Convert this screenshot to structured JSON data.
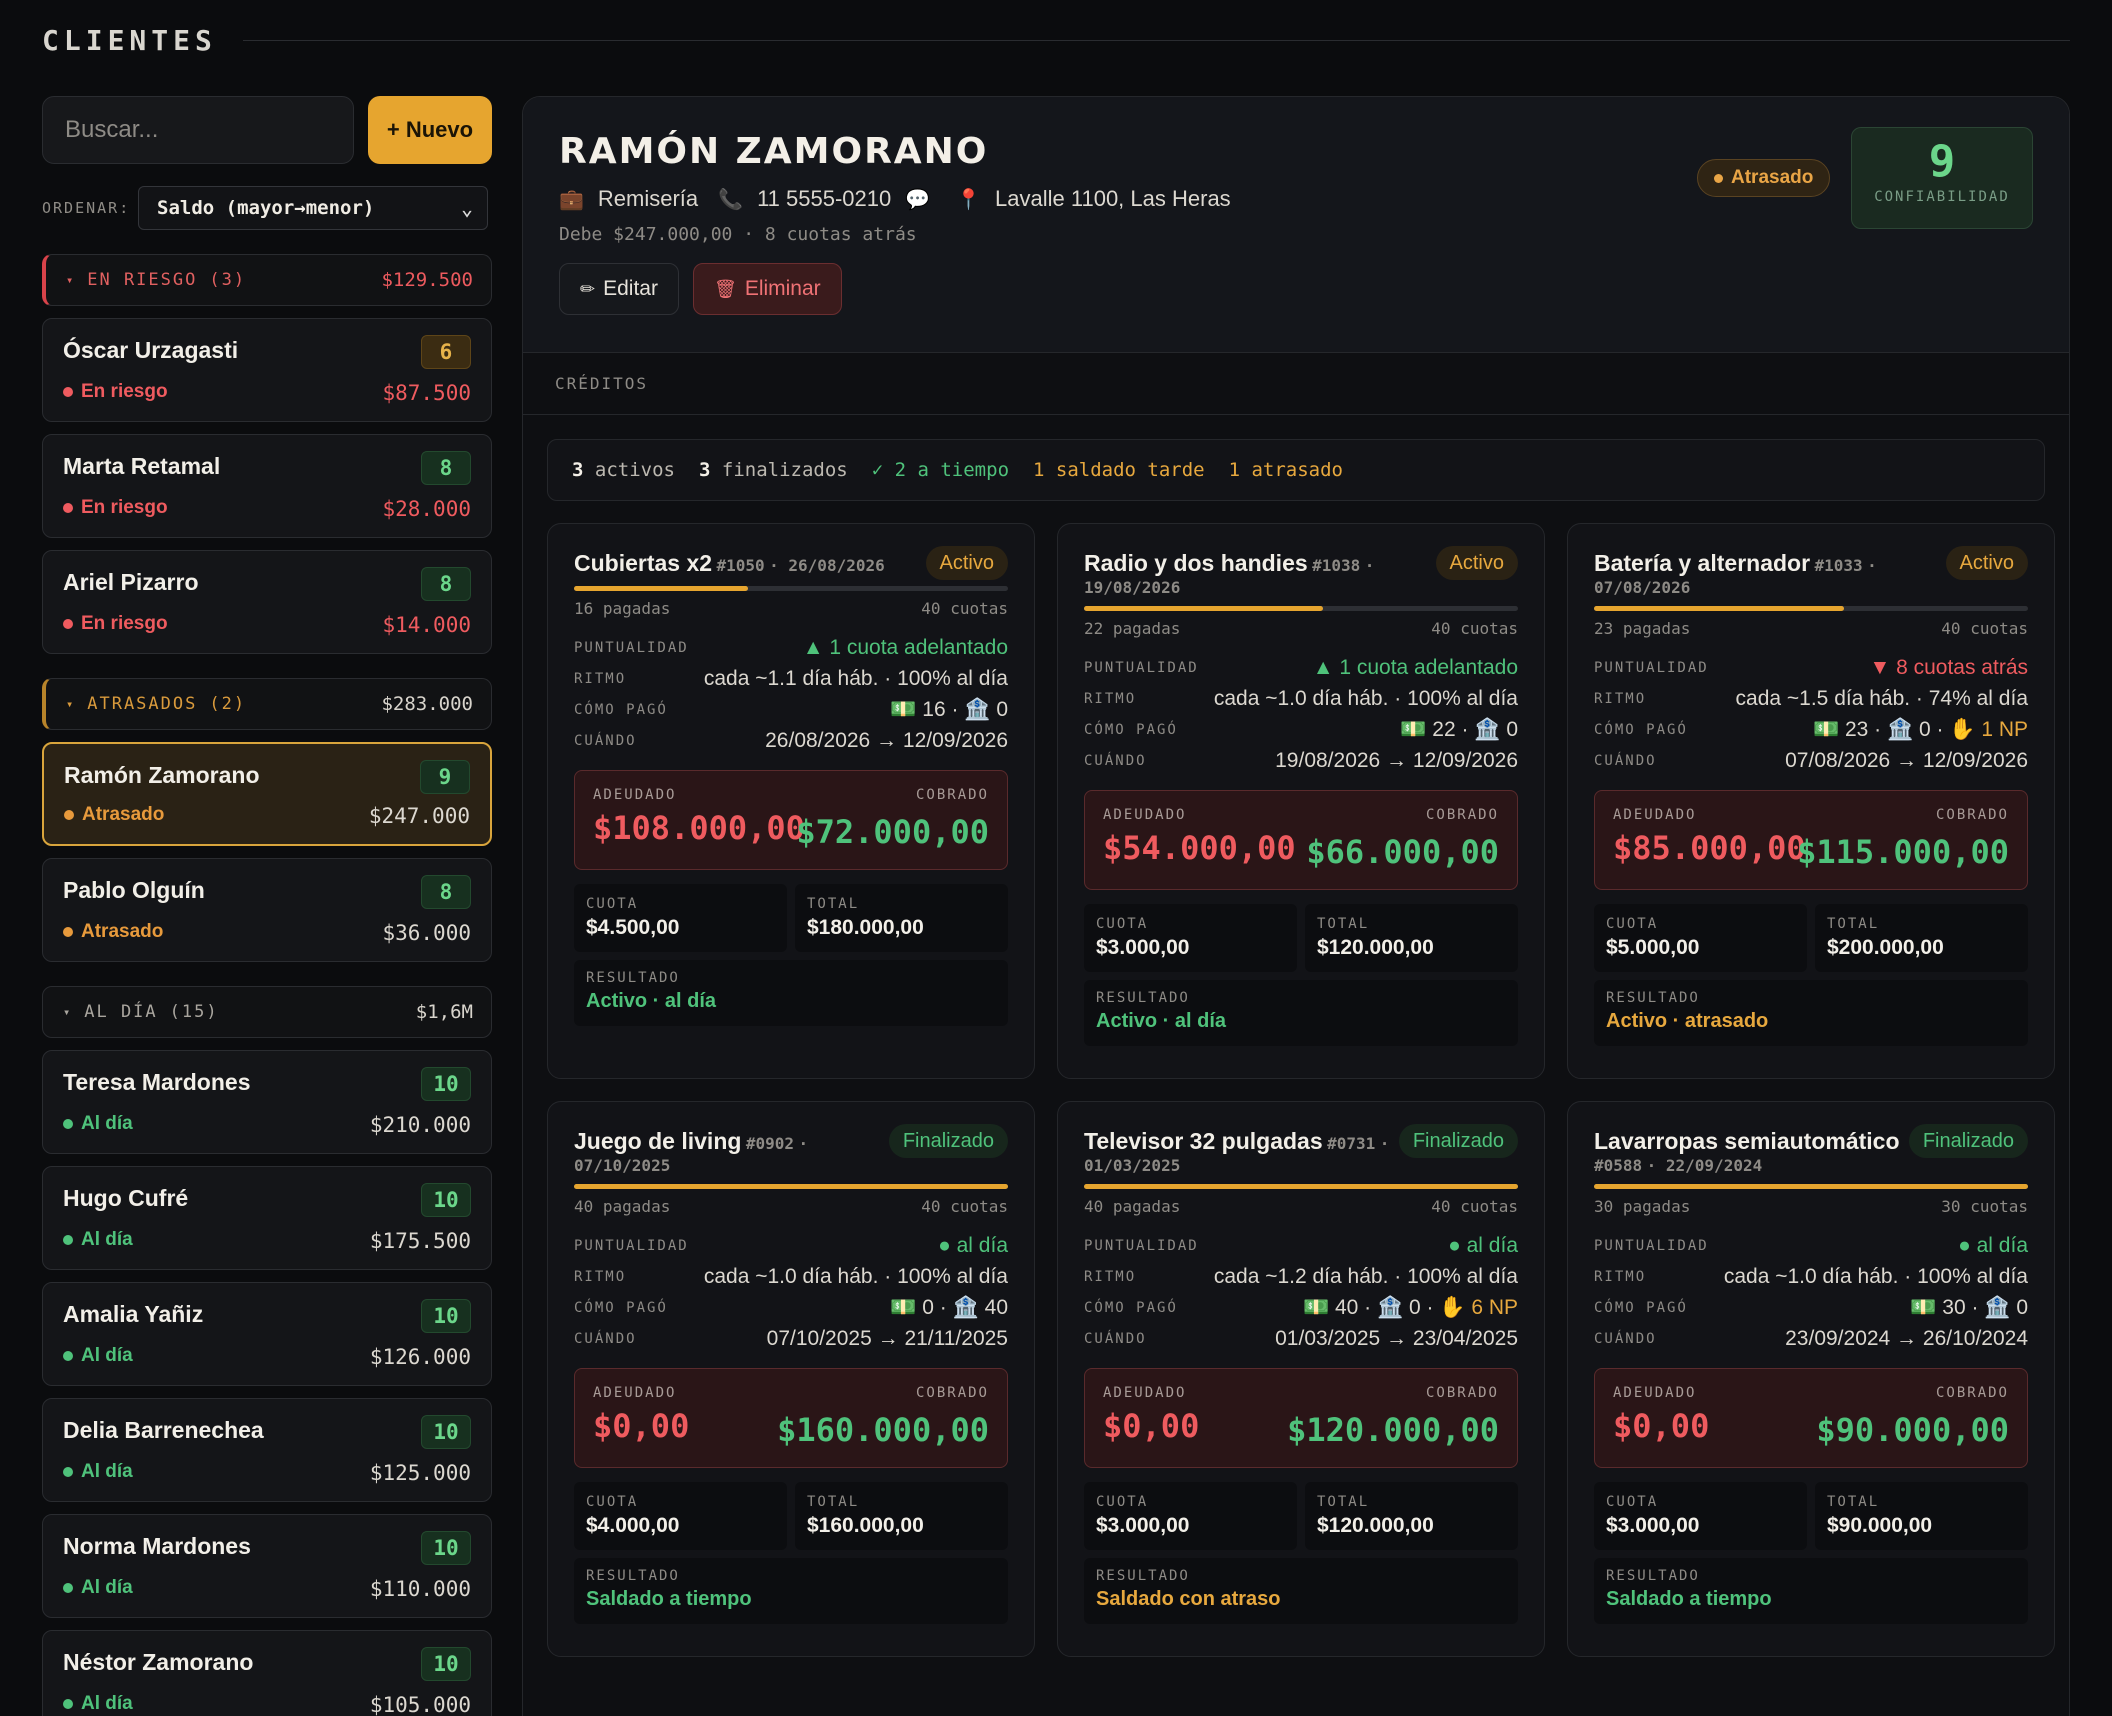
{
  "header": {
    "title": "CLIENTES"
  },
  "sidebar": {
    "search_placeholder": "Buscar...",
    "new_label": "+ Nuevo",
    "sort_label": "ORDENAR:",
    "sort_value": "Saldo (mayor→menor)",
    "groups": [
      {
        "label": "EN RIESGO",
        "count": "(3)",
        "total": "$129.500",
        "clients": [
          {
            "name": "Óscar Urzagasti",
            "score": "6",
            "status": "En riesgo",
            "amount": "$87.500"
          },
          {
            "name": "Marta Retamal",
            "score": "8",
            "status": "En riesgo",
            "amount": "$28.000"
          },
          {
            "name": "Ariel Pizarro",
            "score": "8",
            "status": "En riesgo",
            "amount": "$14.000"
          }
        ]
      },
      {
        "label": "ATRASADOS",
        "count": "(2)",
        "total": "$283.000",
        "clients": [
          {
            "name": "Ramón Zamorano",
            "score": "9",
            "status": "Atrasado",
            "amount": "$247.000"
          },
          {
            "name": "Pablo Olguín",
            "score": "8",
            "status": "Atrasado",
            "amount": "$36.000"
          }
        ]
      },
      {
        "label": "AL DÍA",
        "count": "(15)",
        "total": "$1,6M",
        "clients": [
          {
            "name": "Teresa Mardones",
            "score": "10",
            "status": "Al día",
            "amount": "$210.000"
          },
          {
            "name": "Hugo Cufré",
            "score": "10",
            "status": "Al día",
            "amount": "$175.500"
          },
          {
            "name": "Amalia Yañiz",
            "score": "10",
            "status": "Al día",
            "amount": "$126.000"
          },
          {
            "name": "Delia Barrenechea",
            "score": "10",
            "status": "Al día",
            "amount": "$125.000"
          },
          {
            "name": "Norma Mardones",
            "score": "10",
            "status": "Al día",
            "amount": "$110.000"
          },
          {
            "name": "Néstor Zamorano",
            "score": "10",
            "status": "Al día",
            "amount": "$105.000"
          }
        ]
      }
    ]
  },
  "profile": {
    "name": "RAMÓN ZAMORANO",
    "occupation": "Remisería",
    "phone": "11 5555-0210",
    "address": "Lavalle 1100, Las Heras",
    "debt_line": "Debe $247.000,00 · 8 cuotas atrás",
    "edit_label": "Editar",
    "delete_label": "Eliminar",
    "status": "Atrasado",
    "reliability_value": "9",
    "reliability_label": "CONFIABILIDAD"
  },
  "credits": {
    "section_title": "CRÉDITOS",
    "summary": {
      "active_count": "3",
      "active_label": "activos",
      "done_count": "3",
      "done_label": "finalizados",
      "on_time": "✓ 2 a tiempo",
      "late_paid": "1 saldado tarde",
      "overdue": "1 atrasado"
    },
    "labels": {
      "punctuality": "PUNTUALIDAD",
      "rhythm": "RITMO",
      "how_paid": "CÓMO PAGÓ",
      "when": "CUÁNDO",
      "owed": "ADEUDADO",
      "collected": "COBRADO",
      "installment": "CUOTA",
      "total": "TOTAL",
      "result": "RESULTADO"
    },
    "items": [
      {
        "title": "Cubiertas x2",
        "id": "#1050",
        "date": "· 26/08/2026",
        "badge": "Activo",
        "progress": 0.4,
        "paid_count": "16 pagadas",
        "total_count": "40 cuotas",
        "punctuality": "▲ 1 cuota adelantado",
        "rhythm": "cada ~1.1 día háb. · 100% al día",
        "how_cash": "16",
        "how_bank": "0",
        "how_np": "",
        "when": "26/08/2026 → 12/09/2026",
        "owed": "$108.000,00",
        "collected": "$72.000,00",
        "installment": "$4.500,00",
        "total": "$180.000,00",
        "result": "Activo · al día"
      },
      {
        "title": "Radio y dos handies",
        "id": "#1038",
        "date": "· 19/08/2026",
        "badge": "Activo",
        "progress": 0.55,
        "paid_count": "22 pagadas",
        "total_count": "40 cuotas",
        "punctuality": "▲ 1 cuota adelantado",
        "rhythm": "cada ~1.0 día háb. · 100% al día",
        "how_cash": "22",
        "how_bank": "0",
        "how_np": "",
        "when": "19/08/2026 → 12/09/2026",
        "owed": "$54.000,00",
        "collected": "$66.000,00",
        "installment": "$3.000,00",
        "total": "$120.000,00",
        "result": "Activo · al día"
      },
      {
        "title": "Batería y alternador",
        "id": "#1033",
        "date": "· 07/08/2026",
        "badge": "Activo",
        "progress": 0.575,
        "paid_count": "23 pagadas",
        "total_count": "40 cuotas",
        "punctuality": "▼ 8 cuotas atrás",
        "rhythm": "cada ~1.5 día háb. · 74% al día",
        "how_cash": "23",
        "how_bank": "0",
        "how_np": "1 NP",
        "when": "07/08/2026 → 12/09/2026",
        "owed": "$85.000,00",
        "collected": "$115.000,00",
        "installment": "$5.000,00",
        "total": "$200.000,00",
        "result": "Activo · atrasado"
      },
      {
        "title": "Juego de living",
        "id": "#0902",
        "date": "· 07/10/2025",
        "badge": "Finalizado",
        "progress": 1,
        "paid_count": "40 pagadas",
        "total_count": "40 cuotas",
        "punctuality": "● al día",
        "rhythm": "cada ~1.0 día háb. · 100% al día",
        "how_cash": "0",
        "how_bank": "40",
        "how_np": "",
        "when": "07/10/2025 → 21/11/2025",
        "owed": "$0,00",
        "collected": "$160.000,00",
        "installment": "$4.000,00",
        "total": "$160.000,00",
        "result": "Saldado a tiempo"
      },
      {
        "title": "Televisor 32 pulgadas",
        "id": "#0731",
        "date": "· 01/03/2025",
        "badge": "Finalizado",
        "progress": 1,
        "paid_count": "40 pagadas",
        "total_count": "40 cuotas",
        "punctuality": "● al día",
        "rhythm": "cada ~1.2 día háb. · 100% al día",
        "how_cash": "40",
        "how_bank": "0",
        "how_np": "6 NP",
        "when": "01/03/2025 → 23/04/2025",
        "owed": "$0,00",
        "collected": "$120.000,00",
        "installment": "$3.000,00",
        "total": "$120.000,00",
        "result": "Saldado con atraso"
      },
      {
        "title": "Lavarropas semiautomático",
        "id": "#0588",
        "date": "· 22/09/2024",
        "badge": "Finalizado",
        "progress": 1,
        "paid_count": "30 pagadas",
        "total_count": "30 cuotas",
        "punctuality": "● al día",
        "rhythm": "cada ~1.0 día háb. · 100% al día",
        "how_cash": "30",
        "how_bank": "0",
        "how_np": "",
        "when": "23/09/2024 → 26/10/2024",
        "owed": "$0,00",
        "collected": "$90.000,00",
        "installment": "$3.000,00",
        "total": "$90.000,00",
        "result": "Saldado a tiempo"
      }
    ]
  }
}
